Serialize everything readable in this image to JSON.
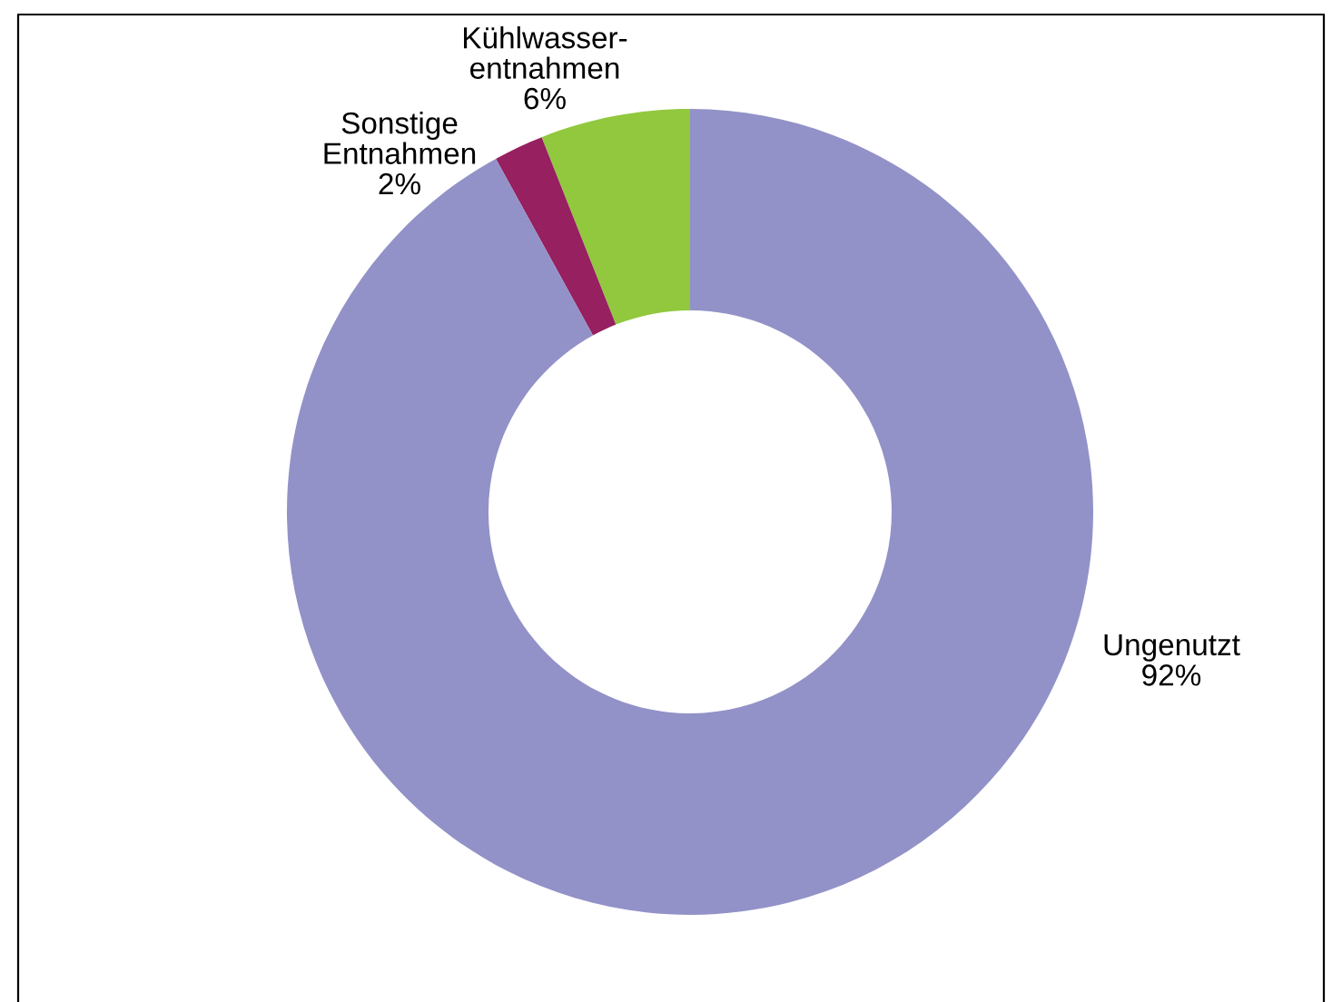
{
  "chart_data": {
    "type": "donut",
    "categories": [
      "Kühlwasser-\nentnahmen",
      "Sonstige\nEntnahmen",
      "Ungenutzt"
    ],
    "values": [
      6,
      2,
      92
    ],
    "colors": [
      "#92c83e",
      "#962060",
      "#9292c8"
    ],
    "value_labels": [
      "6%",
      "2%",
      "92%"
    ],
    "legend": false
  }
}
